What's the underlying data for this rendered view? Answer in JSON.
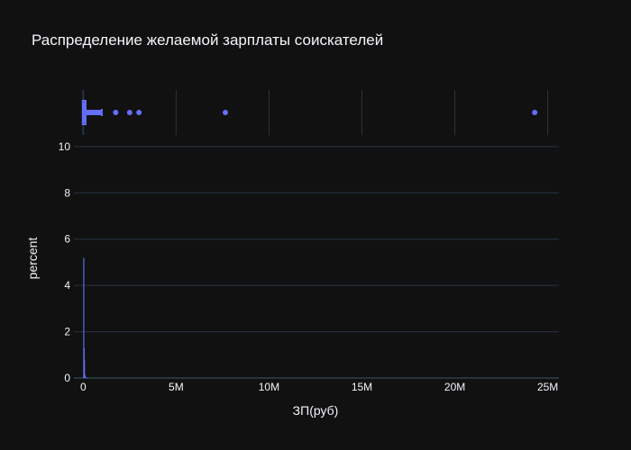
{
  "chart_data": {
    "type": "histogram",
    "title": "Распределение желаемой зарплаты соискателей",
    "xlabel": "ЗП(руб)",
    "ylabel": "percent",
    "xlim": [
      -500000,
      25600000
    ],
    "ylim": [
      0,
      10.5
    ],
    "xticks": [
      {
        "value": 0,
        "label": "0"
      },
      {
        "value": 5000000,
        "label": "5M"
      },
      {
        "value": 10000000,
        "label": "10M"
      },
      {
        "value": 15000000,
        "label": "15M"
      },
      {
        "value": 20000000,
        "label": "20M"
      },
      {
        "value": 25000000,
        "label": "25M"
      }
    ],
    "yticks": [
      {
        "value": 0,
        "label": "0"
      },
      {
        "value": 2,
        "label": "2"
      },
      {
        "value": 4,
        "label": "4"
      },
      {
        "value": 6,
        "label": "6"
      },
      {
        "value": 8,
        "label": "8"
      },
      {
        "value": 10,
        "label": "10"
      }
    ],
    "color": "#636efa",
    "grid": true,
    "histogram_bars": [
      {
        "x": 0,
        "percent": 5.2
      },
      {
        "x": 20000,
        "percent": 1.3
      },
      {
        "x": 40000,
        "percent": 0.8
      },
      {
        "x": 60000,
        "percent": 0.15
      },
      {
        "x": 80000,
        "percent": 0.07
      },
      {
        "x": 120000,
        "percent": 0.03
      },
      {
        "x": 200000,
        "percent": 0.01
      }
    ],
    "marginal_box": {
      "q1": 25000,
      "median": 50000,
      "q3": 80000,
      "whisker_high": 1000000,
      "outliers": [
        1750000,
        2500000,
        3000000,
        7650000,
        24300000
      ]
    }
  }
}
